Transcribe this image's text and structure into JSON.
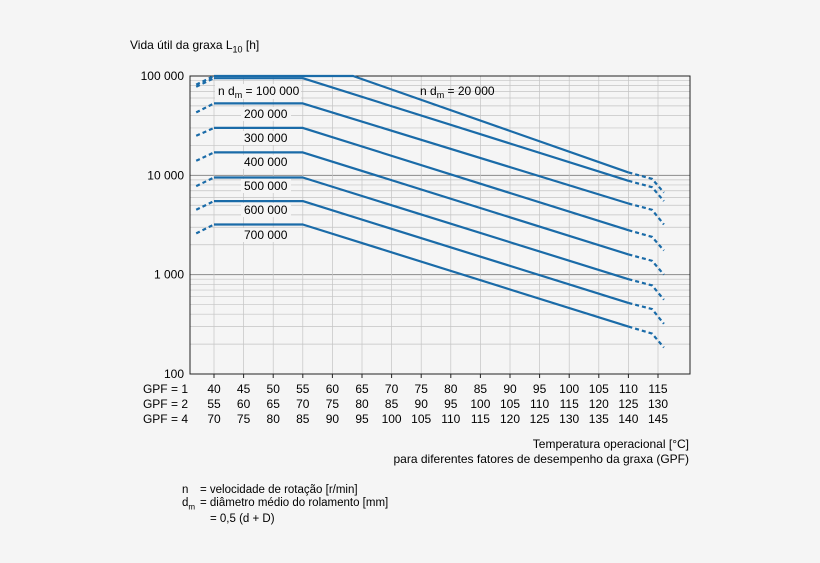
{
  "chart_data": {
    "type": "line",
    "y_title": "Vida útil da graxa L",
    "y_title_sub": "10",
    "y_title_unit": "[h]",
    "yscale": "log",
    "ylim": [
      100,
      100000
    ],
    "y_ticks": [
      {
        "value": 100,
        "label": "100"
      },
      {
        "value": 1000,
        "label": "1 000"
      },
      {
        "value": 10000,
        "label": "10 000"
      },
      {
        "value": 100000,
        "label": "100 000"
      }
    ],
    "x_rows": [
      {
        "label": "GPF = 1",
        "ticks": [
          "40",
          "45",
          "50",
          "55",
          "60",
          "65",
          "70",
          "75",
          "80",
          "85",
          "90",
          "95",
          "100",
          "105",
          "110",
          "115"
        ]
      },
      {
        "label": "GPF = 2",
        "ticks": [
          "55",
          "60",
          "65",
          "70",
          "75",
          "80",
          "85",
          "90",
          "95",
          "100",
          "105",
          "110",
          "115",
          "120",
          "125",
          "130"
        ]
      },
      {
        "label": "GPF = 4",
        "ticks": [
          "70",
          "75",
          "80",
          "85",
          "90",
          "95",
          "100",
          "105",
          "110",
          "115",
          "120",
          "125",
          "130",
          "135",
          "140",
          "145"
        ]
      }
    ],
    "x_unit": "°C (GPF = 1)",
    "xlim": [
      37,
      117
    ],
    "x_title_line1": "Temperatura operacional [°C]",
    "x_title_line2": "para diferentes fatores de desempenho da graxa (GPF)",
    "series": [
      {
        "name": "n d_m = 20 000",
        "label": "n d",
        "label_sub": "m",
        "label_rest": " = 20 000",
        "solid": [
          [
            40,
            100000
          ],
          [
            63.5,
            100000
          ],
          [
            110,
            10700
          ]
        ],
        "dashed_start": [
          [
            37,
            82000
          ],
          [
            40,
            100000
          ]
        ],
        "dashed_end": [
          [
            110,
            10700
          ],
          [
            114,
            9200
          ],
          [
            116,
            6700
          ]
        ]
      },
      {
        "name": "n d_m = 100 000",
        "label": "n d",
        "label_sub": "m",
        "label_rest": " = 100 000",
        "solid": [
          [
            40,
            95000
          ],
          [
            55,
            95000
          ],
          [
            110,
            8800
          ]
        ],
        "dashed_start": [
          [
            37,
            78000
          ],
          [
            40,
            95000
          ]
        ],
        "dashed_end": [
          [
            110,
            8800
          ],
          [
            114,
            7600
          ],
          [
            116,
            5500
          ]
        ]
      },
      {
        "name": "200 000",
        "label": "200 000",
        "solid": [
          [
            40,
            53000
          ],
          [
            55,
            53000
          ],
          [
            110,
            5200
          ]
        ],
        "dashed_start": [
          [
            37,
            43000
          ],
          [
            40,
            53000
          ]
        ],
        "dashed_end": [
          [
            110,
            5200
          ],
          [
            114,
            4500
          ],
          [
            116,
            3200
          ]
        ]
      },
      {
        "name": "300 000",
        "label": "300 000",
        "solid": [
          [
            40,
            30000
          ],
          [
            55,
            30000
          ],
          [
            110,
            2800
          ]
        ],
        "dashed_start": [
          [
            37,
            25000
          ],
          [
            40,
            30000
          ]
        ],
        "dashed_end": [
          [
            110,
            2800
          ],
          [
            114,
            2400
          ],
          [
            116,
            1750
          ]
        ]
      },
      {
        "name": "400 000",
        "label": "400 000",
        "solid": [
          [
            40,
            17000
          ],
          [
            55,
            17000
          ],
          [
            110,
            1600
          ]
        ],
        "dashed_start": [
          [
            37,
            14000
          ],
          [
            40,
            17000
          ]
        ],
        "dashed_end": [
          [
            110,
            1600
          ],
          [
            114,
            1380
          ],
          [
            116,
            1000
          ]
        ]
      },
      {
        "name": "500 000",
        "label": "500 000",
        "solid": [
          [
            40,
            9500
          ],
          [
            55,
            9500
          ],
          [
            110,
            900
          ]
        ],
        "dashed_start": [
          [
            37,
            7800
          ],
          [
            40,
            9500
          ]
        ],
        "dashed_end": [
          [
            110,
            900
          ],
          [
            114,
            780
          ],
          [
            116,
            560
          ]
        ]
      },
      {
        "name": "600 000",
        "label": "600 000",
        "solid": [
          [
            40,
            5500
          ],
          [
            55,
            5500
          ],
          [
            110,
            520
          ]
        ],
        "dashed_start": [
          [
            37,
            4500
          ],
          [
            40,
            5500
          ]
        ],
        "dashed_end": [
          [
            110,
            520
          ],
          [
            114,
            450
          ],
          [
            116,
            320
          ]
        ]
      },
      {
        "name": "700 000",
        "label": "700 000",
        "solid": [
          [
            40,
            3200
          ],
          [
            55,
            3200
          ],
          [
            110,
            300
          ]
        ],
        "dashed_start": [
          [
            37,
            2600
          ],
          [
            40,
            3200
          ]
        ],
        "dashed_end": [
          [
            110,
            300
          ],
          [
            114,
            255
          ],
          [
            116,
            185
          ]
        ]
      }
    ],
    "grid": true,
    "line_color": "#1a6ba8"
  },
  "legend": [
    {
      "sym": "n",
      "sym_sub": "",
      "text": "= velocidade de rotação [r/min]"
    },
    {
      "sym": "d",
      "sym_sub": "m",
      "text": "= diâmetro médio do rolamento [mm]"
    },
    {
      "sym": "",
      "sym_sub": "",
      "text": "= 0,5 (d + D)"
    }
  ]
}
